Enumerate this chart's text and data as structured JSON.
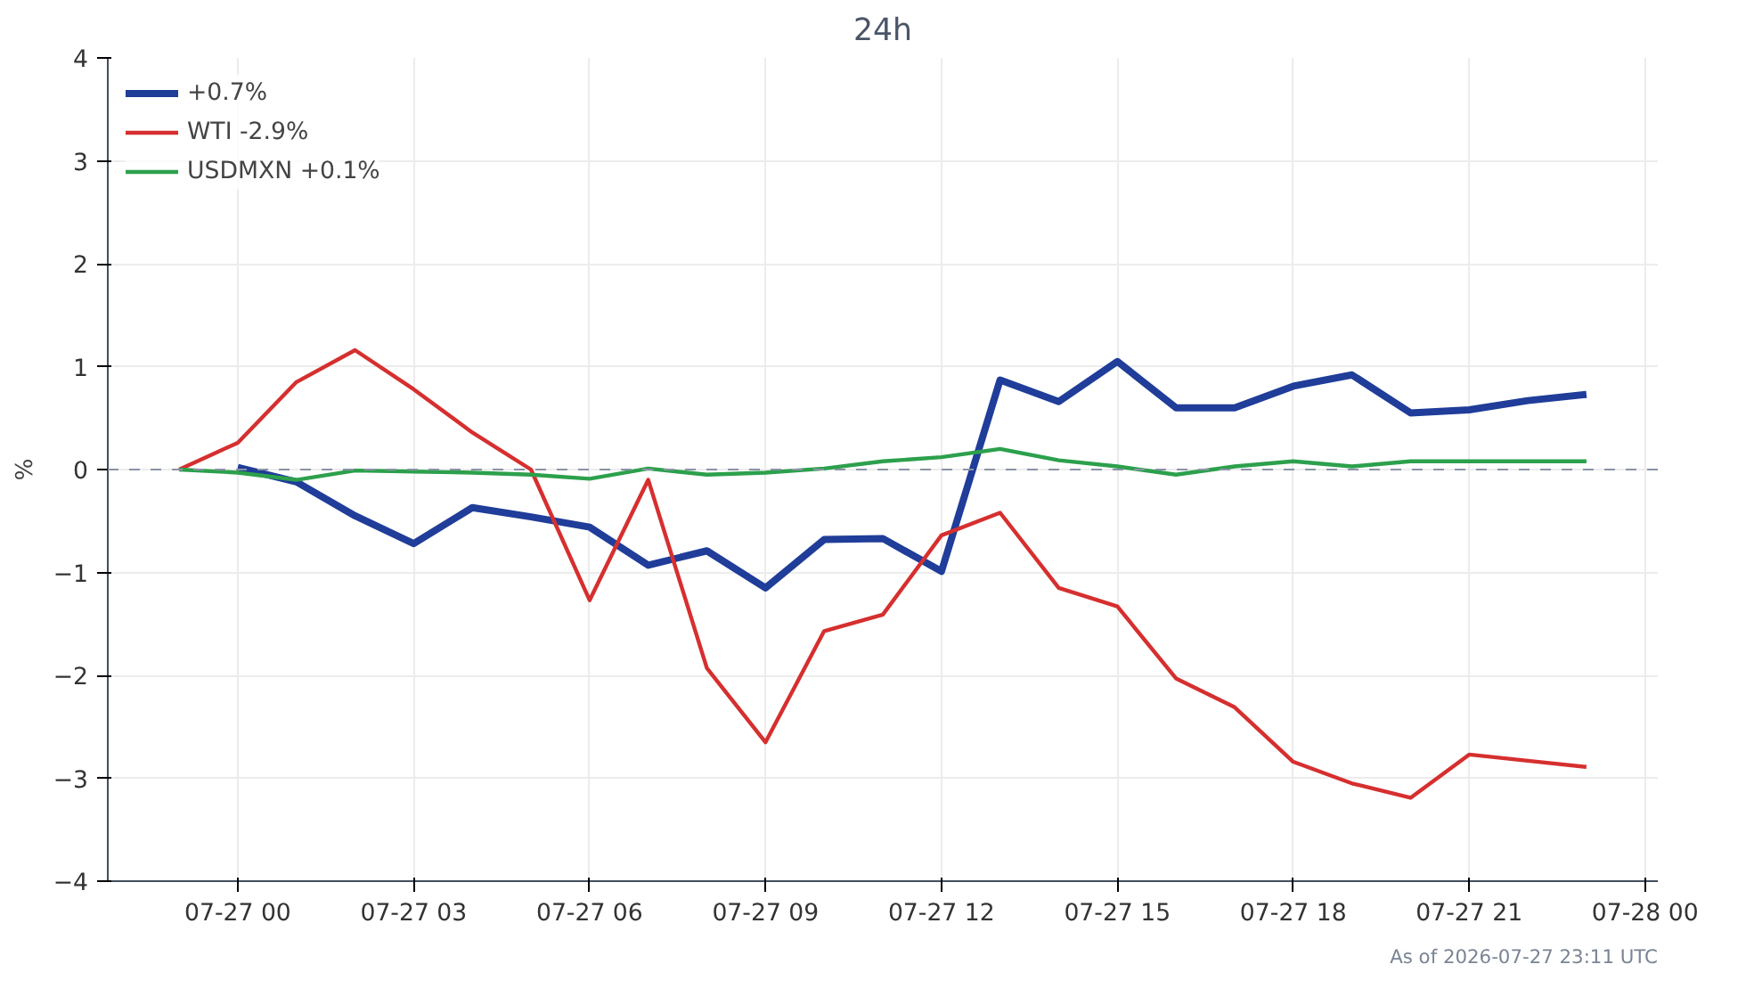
{
  "chart_data": {
    "type": "line",
    "title": "24h",
    "ylabel": "%",
    "xlim": [
      "2026-07-26T21:47",
      "2026-07-28T00:13"
    ],
    "xticks": [
      {
        "value": "2026-07-27T00:00",
        "label": "07-27 00"
      },
      {
        "value": "2026-07-27T03:00",
        "label": "07-27 03"
      },
      {
        "value": "2026-07-27T06:00",
        "label": "07-27 06"
      },
      {
        "value": "2026-07-27T09:00",
        "label": "07-27 09"
      },
      {
        "value": "2026-07-27T12:00",
        "label": "07-27 12"
      },
      {
        "value": "2026-07-27T15:00",
        "label": "07-27 15"
      },
      {
        "value": "2026-07-27T18:00",
        "label": "07-27 18"
      },
      {
        "value": "2026-07-27T21:00",
        "label": "07-27 21"
      },
      {
        "value": "2026-07-28T00:00",
        "label": "07-28 00"
      }
    ],
    "ylim": [
      -4,
      4
    ],
    "yticks": [
      {
        "value": -4,
        "label": "−4"
      },
      {
        "value": -3,
        "label": "−3"
      },
      {
        "value": -2,
        "label": "−2"
      },
      {
        "value": -1,
        "label": "−1"
      },
      0,
      1,
      2,
      3,
      4
    ],
    "grid": true,
    "legend": "top left",
    "line_style": "solid",
    "marker": "none",
    "ref_lines": [
      {
        "axis": "y",
        "value": 0,
        "color": "#8a93a6",
        "line_style": "dashed"
      }
    ],
    "series": [
      {
        "name": "+0.7%",
        "color": "#1f3d99",
        "x": [
          "2026-07-27T00:00",
          "2026-07-27T01:00",
          "2026-07-27T02:00",
          "2026-07-27T03:00",
          "2026-07-27T04:00",
          "2026-07-27T05:00",
          "2026-07-27T06:00",
          "2026-07-27T07:00",
          "2026-07-27T08:00",
          "2026-07-27T09:00",
          "2026-07-27T10:00",
          "2026-07-27T11:00",
          "2026-07-27T12:00",
          "2026-07-27T13:00",
          "2026-07-27T14:00",
          "2026-07-27T15:00",
          "2026-07-27T16:00",
          "2026-07-27T17:00",
          "2026-07-27T18:00",
          "2026-07-27T19:00",
          "2026-07-27T20:00",
          "2026-07-27T21:00",
          "2026-07-27T22:00",
          "2026-07-27T23:00"
        ],
        "values": [
          0.02,
          -0.12,
          -0.45,
          -0.72,
          -0.37,
          -0.46,
          -0.56,
          -0.93,
          -0.79,
          -1.15,
          -0.68,
          -0.67,
          -0.99,
          0.87,
          0.66,
          1.05,
          0.6,
          0.6,
          0.81,
          0.92,
          0.55,
          0.58,
          0.67,
          0.73
        ]
      },
      {
        "name": "WTI -2.9%",
        "color": "#d62f2f",
        "x": [
          "2026-07-26T23:00",
          "2026-07-27T00:00",
          "2026-07-27T01:00",
          "2026-07-27T02:00",
          "2026-07-27T03:00",
          "2026-07-27T04:00",
          "2026-07-27T05:00",
          "2026-07-27T06:00",
          "2026-07-27T07:00",
          "2026-07-27T08:00",
          "2026-07-27T09:00",
          "2026-07-27T10:00",
          "2026-07-27T11:00",
          "2026-07-27T12:00",
          "2026-07-27T13:00",
          "2026-07-27T14:00",
          "2026-07-27T15:00",
          "2026-07-27T16:00",
          "2026-07-27T17:00",
          "2026-07-27T18:00",
          "2026-07-27T19:00",
          "2026-07-27T20:00",
          "2026-07-27T21:00",
          "2026-07-27T22:00",
          "2026-07-27T23:00"
        ],
        "values": [
          0,
          0.26,
          0.85,
          1.16,
          0.78,
          0.36,
          0.0,
          -1.27,
          -0.1,
          -1.93,
          -2.65,
          -1.57,
          -1.41,
          -0.64,
          -0.42,
          -1.15,
          -1.33,
          -2.03,
          -2.31,
          -2.84,
          -3.05,
          -3.19,
          -2.77,
          -2.83,
          -2.89
        ]
      },
      {
        "name": "USDMXN +0.1%",
        "color": "#2ca04c",
        "x": [
          "2026-07-26T23:00",
          "2026-07-27T00:00",
          "2026-07-27T01:00",
          "2026-07-27T02:00",
          "2026-07-27T03:00",
          "2026-07-27T04:00",
          "2026-07-27T05:00",
          "2026-07-27T06:00",
          "2026-07-27T07:00",
          "2026-07-27T08:00",
          "2026-07-27T09:00",
          "2026-07-27T10:00",
          "2026-07-27T11:00",
          "2026-07-27T12:00",
          "2026-07-27T13:00",
          "2026-07-27T14:00",
          "2026-07-27T15:00",
          "2026-07-27T16:00",
          "2026-07-27T17:00",
          "2026-07-27T18:00",
          "2026-07-27T19:00",
          "2026-07-27T20:00",
          "2026-07-27T21:00",
          "2026-07-27T22:00",
          "2026-07-27T23:00"
        ],
        "values": [
          0,
          -0.03,
          -0.1,
          -0.01,
          -0.02,
          -0.03,
          -0.05,
          -0.09,
          0.01,
          -0.05,
          -0.03,
          0.01,
          0.08,
          0.12,
          0.2,
          0.09,
          0.03,
          -0.05,
          0.03,
          0.08,
          0.03,
          0.08,
          0.08,
          0.08,
          0.08
        ]
      }
    ],
    "annotations": [
      "As of 2026-07-27 23:11 UTC"
    ]
  }
}
